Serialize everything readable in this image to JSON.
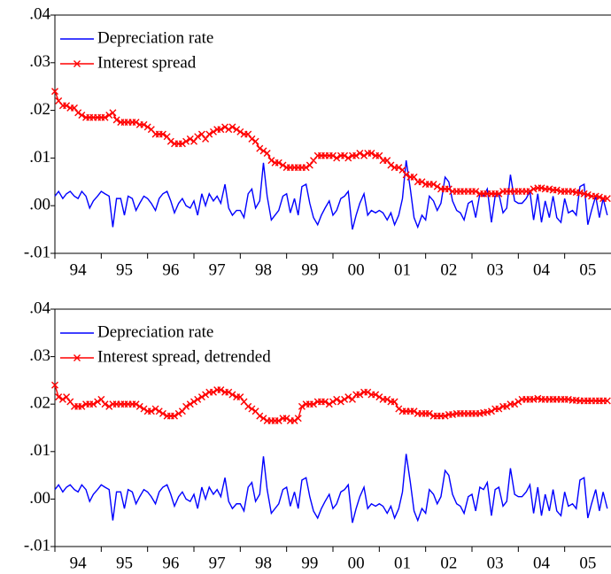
{
  "chart_data": [
    {
      "type": "line",
      "x": [
        1994.0,
        1994.08,
        1994.17,
        1994.25,
        1994.33,
        1994.42,
        1994.5,
        1994.58,
        1994.67,
        1994.75,
        1994.83,
        1994.92,
        1995.0,
        1995.08,
        1995.17,
        1995.25,
        1995.33,
        1995.42,
        1995.5,
        1995.58,
        1995.67,
        1995.75,
        1995.83,
        1995.92,
        1996.0,
        1996.08,
        1996.17,
        1996.25,
        1996.33,
        1996.42,
        1996.5,
        1996.58,
        1996.67,
        1996.75,
        1996.83,
        1996.92,
        1997.0,
        1997.08,
        1997.17,
        1997.25,
        1997.33,
        1997.42,
        1997.5,
        1997.58,
        1997.67,
        1997.75,
        1997.83,
        1997.92,
        1998.0,
        1998.08,
        1998.17,
        1998.25,
        1998.33,
        1998.42,
        1998.5,
        1998.58,
        1998.67,
        1998.75,
        1998.83,
        1998.92,
        1999.0,
        1999.08,
        1999.17,
        1999.25,
        1999.33,
        1999.42,
        1999.5,
        1999.58,
        1999.67,
        1999.75,
        1999.83,
        1999.92,
        2000.0,
        2000.08,
        2000.17,
        2000.25,
        2000.33,
        2000.42,
        2000.5,
        2000.58,
        2000.67,
        2000.75,
        2000.83,
        2000.92,
        2001.0,
        2001.08,
        2001.17,
        2001.25,
        2001.33,
        2001.42,
        2001.5,
        2001.58,
        2001.67,
        2001.75,
        2001.83,
        2001.92,
        2002.0,
        2002.08,
        2002.17,
        2002.25,
        2002.33,
        2002.42,
        2002.5,
        2002.58,
        2002.67,
        2002.75,
        2002.83,
        2002.92,
        2003.0,
        2003.08,
        2003.17,
        2003.25,
        2003.33,
        2003.42,
        2003.5,
        2003.58,
        2003.67,
        2003.75,
        2003.83,
        2003.92,
        2004.0,
        2004.08,
        2004.17,
        2004.25,
        2004.33,
        2004.42,
        2004.5,
        2004.58,
        2004.67,
        2004.75,
        2004.83,
        2004.92,
        2005.0,
        2005.08,
        2005.17,
        2005.25,
        2005.33,
        2005.42,
        2005.5,
        2005.58,
        2005.67,
        2005.75,
        2005.83,
        2005.92
      ],
      "series": [
        {
          "name": "Depreciation rate",
          "color": "#0000ff",
          "marker": "none",
          "values": [
            0.002,
            0.003,
            0.0015,
            0.0025,
            0.003,
            0.002,
            0.0015,
            0.003,
            0.002,
            -0.0005,
            0.001,
            0.002,
            0.003,
            0.0025,
            0.002,
            -0.0045,
            0.0015,
            0.0015,
            -0.002,
            0.002,
            0.0015,
            -0.001,
            0.0005,
            0.002,
            0.0015,
            0.0005,
            -0.001,
            0.0015,
            0.0025,
            0.003,
            0.001,
            -0.0015,
            0.0005,
            0.0015,
            0,
            -0.0005,
            0.001,
            -0.002,
            0.0025,
            0,
            0.0025,
            0.001,
            0.002,
            0.0005,
            0.0045,
            -0.0005,
            -0.002,
            -0.001,
            -0.001,
            -0.0025,
            0.0025,
            0.0035,
            -0.0005,
            0.001,
            0.009,
            0.002,
            -0.003,
            -0.002,
            -0.001,
            0.002,
            0.0025,
            -0.0015,
            0.0015,
            -0.002,
            0.004,
            0.0045,
            0.0005,
            -0.0025,
            -0.004,
            -0.002,
            -0.0005,
            0.001,
            -0.002,
            -0.001,
            0.0015,
            0.002,
            0.003,
            -0.005,
            -0.002,
            0.0005,
            0.0025,
            -0.002,
            -0.001,
            -0.0015,
            -0.001,
            -0.0015,
            -0.003,
            -0.0015,
            -0.004,
            -0.002,
            0.0015,
            0.0095,
            0.0035,
            -0.0025,
            -0.0045,
            -0.002,
            -0.003,
            0.002,
            0.001,
            -0.001,
            0.0005,
            0.006,
            0.005,
            0.001,
            -0.001,
            -0.0015,
            -0.003,
            0.0005,
            0.001,
            -0.0025,
            0.0025,
            0.002,
            0.0035,
            -0.0035,
            0.002,
            0.0025,
            -0.0015,
            -0.0005,
            0.0065,
            0.001,
            0.0005,
            0.0005,
            0.0015,
            0.003,
            -0.003,
            0.0025,
            -0.0035,
            0.001,
            -0.0025,
            0.002,
            -0.0025,
            -0.0035,
            0.0015,
            -0.0015,
            -0.001,
            -0.002,
            0.004,
            0.0045,
            -0.004,
            -0.001,
            0.002,
            -0.0025,
            0.0015,
            -0.002
          ]
        },
        {
          "name": "Interest spread",
          "color": "#ff0000",
          "marker": "x",
          "values": [
            0.024,
            0.022,
            0.021,
            0.021,
            0.0205,
            0.0205,
            0.0195,
            0.019,
            0.0185,
            0.0185,
            0.0185,
            0.0185,
            0.0185,
            0.0185,
            0.019,
            0.0195,
            0.018,
            0.0175,
            0.0175,
            0.0175,
            0.0175,
            0.0175,
            0.017,
            0.017,
            0.0165,
            0.016,
            0.015,
            0.015,
            0.015,
            0.0145,
            0.0135,
            0.013,
            0.013,
            0.013,
            0.0135,
            0.014,
            0.0135,
            0.0145,
            0.015,
            0.014,
            0.015,
            0.0155,
            0.016,
            0.016,
            0.0165,
            0.016,
            0.0165,
            0.016,
            0.0155,
            0.015,
            0.015,
            0.014,
            0.0135,
            0.012,
            0.0115,
            0.011,
            0.0095,
            0.009,
            0.009,
            0.0085,
            0.008,
            0.008,
            0.008,
            0.008,
            0.008,
            0.008,
            0.0085,
            0.0095,
            0.0105,
            0.0105,
            0.0105,
            0.0105,
            0.0105,
            0.01,
            0.0105,
            0.0105,
            0.01,
            0.0105,
            0.0105,
            0.011,
            0.0105,
            0.011,
            0.011,
            0.0105,
            0.0105,
            0.0095,
            0.0095,
            0.0085,
            0.008,
            0.008,
            0.0075,
            0.0065,
            0.006,
            0.006,
            0.005,
            0.005,
            0.0045,
            0.0045,
            0.0045,
            0.004,
            0.0035,
            0.0035,
            0.0035,
            0.003,
            0.003,
            0.003,
            0.003,
            0.003,
            0.003,
            0.003,
            0.0025,
            0.0025,
            0.0025,
            0.0025,
            0.0025,
            0.0025,
            0.003,
            0.003,
            0.003,
            0.003,
            0.003,
            0.003,
            0.003,
            0.003,
            0.0035,
            0.0037,
            0.0037,
            0.0035,
            0.0035,
            0.0033,
            0.0033,
            0.003,
            0.003,
            0.003,
            0.003,
            0.0028,
            0.0027,
            0.0025,
            0.0023,
            0.002,
            0.002,
            0.0018,
            0.0015,
            0.0015
          ]
        }
      ],
      "xlim": [
        1994,
        2006
      ],
      "xticks": [
        {
          "value": 1994.5,
          "label": "94"
        },
        {
          "value": 1995.5,
          "label": "95"
        },
        {
          "value": 1996.5,
          "label": "96"
        },
        {
          "value": 1997.5,
          "label": "97"
        },
        {
          "value": 1998.5,
          "label": "98"
        },
        {
          "value": 1999.5,
          "label": "99"
        },
        {
          "value": 2000.5,
          "label": "00"
        },
        {
          "value": 2001.5,
          "label": "01"
        },
        {
          "value": 2002.5,
          "label": "02"
        },
        {
          "value": 2003.5,
          "label": "03"
        },
        {
          "value": 2004.5,
          "label": "04"
        },
        {
          "value": 2005.5,
          "label": "05"
        }
      ],
      "ylim": [
        -0.01,
        0.04
      ],
      "yticks": [
        {
          "value": -0.01,
          "label": "-.01"
        },
        {
          "value": 0,
          "label": ".00"
        },
        {
          "value": 0.01,
          "label": ".01"
        },
        {
          "value": 0.02,
          "label": ".02"
        },
        {
          "value": 0.03,
          "label": ".03"
        },
        {
          "value": 0.04,
          "label": ".04"
        }
      ],
      "legend": "upper left"
    },
    {
      "type": "line",
      "x": [
        1994.0,
        1994.08,
        1994.17,
        1994.25,
        1994.33,
        1994.42,
        1994.5,
        1994.58,
        1994.67,
        1994.75,
        1994.83,
        1994.92,
        1995.0,
        1995.08,
        1995.17,
        1995.25,
        1995.33,
        1995.42,
        1995.5,
        1995.58,
        1995.67,
        1995.75,
        1995.83,
        1995.92,
        1996.0,
        1996.08,
        1996.17,
        1996.25,
        1996.33,
        1996.42,
        1996.5,
        1996.58,
        1996.67,
        1996.75,
        1996.83,
        1996.92,
        1997.0,
        1997.08,
        1997.17,
        1997.25,
        1997.33,
        1997.42,
        1997.5,
        1997.58,
        1997.67,
        1997.75,
        1997.83,
        1997.92,
        1998.0,
        1998.08,
        1998.17,
        1998.25,
        1998.33,
        1998.42,
        1998.5,
        1998.58,
        1998.67,
        1998.75,
        1998.83,
        1998.92,
        1999.0,
        1999.08,
        1999.17,
        1999.25,
        1999.33,
        1999.42,
        1999.5,
        1999.58,
        1999.67,
        1999.75,
        1999.83,
        1999.92,
        2000.0,
        2000.08,
        2000.17,
        2000.25,
        2000.33,
        2000.42,
        2000.5,
        2000.58,
        2000.67,
        2000.75,
        2000.83,
        2000.92,
        2001.0,
        2001.08,
        2001.17,
        2001.25,
        2001.33,
        2001.42,
        2001.5,
        2001.58,
        2001.67,
        2001.75,
        2001.83,
        2001.92,
        2002.0,
        2002.08,
        2002.17,
        2002.25,
        2002.33,
        2002.42,
        2002.5,
        2002.58,
        2002.67,
        2002.75,
        2002.83,
        2002.92,
        2003.0,
        2003.08,
        2003.17,
        2003.25,
        2003.33,
        2003.42,
        2003.5,
        2003.58,
        2003.67,
        2003.75,
        2003.83,
        2003.92,
        2004.0,
        2004.08,
        2004.17,
        2004.25,
        2004.33,
        2004.42,
        2004.5,
        2004.58,
        2004.67,
        2004.75,
        2004.83,
        2004.92,
        2005.0,
        2005.08,
        2005.17,
        2005.25,
        2005.33,
        2005.42,
        2005.5,
        2005.58,
        2005.67,
        2005.75,
        2005.83,
        2005.92
      ],
      "series": [
        {
          "name": "Depreciation rate",
          "color": "#0000ff",
          "marker": "none",
          "values": [
            0.002,
            0.003,
            0.0015,
            0.0025,
            0.003,
            0.002,
            0.0015,
            0.003,
            0.002,
            -0.0005,
            0.001,
            0.002,
            0.003,
            0.0025,
            0.002,
            -0.0045,
            0.0015,
            0.0015,
            -0.002,
            0.002,
            0.0015,
            -0.001,
            0.0005,
            0.002,
            0.0015,
            0.0005,
            -0.001,
            0.0015,
            0.0025,
            0.003,
            0.001,
            -0.0015,
            0.0005,
            0.0015,
            0,
            -0.0005,
            0.001,
            -0.002,
            0.0025,
            0,
            0.0025,
            0.001,
            0.002,
            0.0005,
            0.0045,
            -0.0005,
            -0.002,
            -0.001,
            -0.001,
            -0.0025,
            0.0025,
            0.0035,
            -0.0005,
            0.001,
            0.009,
            0.002,
            -0.003,
            -0.002,
            -0.001,
            0.002,
            0.0025,
            -0.0015,
            0.0015,
            -0.002,
            0.004,
            0.0045,
            0.0005,
            -0.0025,
            -0.004,
            -0.002,
            -0.0005,
            0.001,
            -0.002,
            -0.001,
            0.0015,
            0.002,
            0.003,
            -0.005,
            -0.002,
            0.0005,
            0.0025,
            -0.002,
            -0.001,
            -0.0015,
            -0.001,
            -0.0015,
            -0.003,
            -0.0015,
            -0.004,
            -0.002,
            0.0015,
            0.0095,
            0.0035,
            -0.0025,
            -0.0045,
            -0.002,
            -0.003,
            0.002,
            0.001,
            -0.001,
            0.0005,
            0.006,
            0.005,
            0.001,
            -0.001,
            -0.0015,
            -0.003,
            0.0005,
            0.001,
            -0.0025,
            0.0025,
            0.002,
            0.0035,
            -0.0035,
            0.002,
            0.0025,
            -0.0015,
            -0.0005,
            0.0065,
            0.001,
            0.0005,
            0.0005,
            0.0015,
            0.003,
            -0.003,
            0.0025,
            -0.0035,
            0.001,
            -0.0025,
            0.002,
            -0.0025,
            -0.0035,
            0.0015,
            -0.0015,
            -0.001,
            -0.002,
            0.004,
            0.0045,
            -0.004,
            -0.001,
            0.002,
            -0.0025,
            0.0015,
            -0.002
          ]
        },
        {
          "name": "Interest spread, detrended",
          "color": "#ff0000",
          "marker": "x",
          "values": [
            0.024,
            0.0215,
            0.021,
            0.0215,
            0.0205,
            0.0195,
            0.0195,
            0.0195,
            0.02,
            0.02,
            0.02,
            0.0205,
            0.021,
            0.02,
            0.0195,
            0.02,
            0.02,
            0.02,
            0.02,
            0.02,
            0.02,
            0.02,
            0.0195,
            0.019,
            0.0185,
            0.0185,
            0.019,
            0.0185,
            0.018,
            0.0175,
            0.0175,
            0.0175,
            0.018,
            0.0185,
            0.0195,
            0.02,
            0.0205,
            0.021,
            0.0215,
            0.022,
            0.0225,
            0.0225,
            0.023,
            0.023,
            0.0225,
            0.0225,
            0.022,
            0.0215,
            0.0215,
            0.0205,
            0.0195,
            0.019,
            0.0185,
            0.0175,
            0.017,
            0.0165,
            0.0165,
            0.0165,
            0.0165,
            0.017,
            0.017,
            0.0165,
            0.0165,
            0.017,
            0.0195,
            0.02,
            0.02,
            0.02,
            0.0205,
            0.0205,
            0.0205,
            0.02,
            0.0205,
            0.021,
            0.0205,
            0.021,
            0.0215,
            0.021,
            0.022,
            0.022,
            0.0225,
            0.0225,
            0.022,
            0.022,
            0.0215,
            0.021,
            0.021,
            0.0205,
            0.0205,
            0.019,
            0.0185,
            0.0185,
            0.0185,
            0.0185,
            0.018,
            0.018,
            0.018,
            0.018,
            0.0175,
            0.0175,
            0.0175,
            0.0175,
            0.0178,
            0.0178,
            0.018,
            0.018,
            0.018,
            0.018,
            0.018,
            0.018,
            0.018,
            0.0182,
            0.0183,
            0.0185,
            0.019,
            0.019,
            0.0195,
            0.0195,
            0.02,
            0.02,
            0.0205,
            0.021,
            0.021,
            0.021,
            0.021,
            0.0212,
            0.021,
            0.021,
            0.021,
            0.021,
            0.021,
            0.021,
            0.021,
            0.021,
            0.0208,
            0.0208,
            0.0207,
            0.0207,
            0.0207,
            0.0207,
            0.0207,
            0.0207,
            0.0207,
            0.0207
          ]
        }
      ],
      "xlim": [
        1994,
        2006
      ],
      "xticks": [
        {
          "value": 1994.5,
          "label": "94"
        },
        {
          "value": 1995.5,
          "label": "95"
        },
        {
          "value": 1996.5,
          "label": "96"
        },
        {
          "value": 1997.5,
          "label": "97"
        },
        {
          "value": 1998.5,
          "label": "98"
        },
        {
          "value": 1999.5,
          "label": "99"
        },
        {
          "value": 2000.5,
          "label": "00"
        },
        {
          "value": 2001.5,
          "label": "01"
        },
        {
          "value": 2002.5,
          "label": "02"
        },
        {
          "value": 2003.5,
          "label": "03"
        },
        {
          "value": 2004.5,
          "label": "04"
        },
        {
          "value": 2005.5,
          "label": "05"
        }
      ],
      "ylim": [
        -0.01,
        0.04
      ],
      "yticks": [
        {
          "value": -0.01,
          "label": "-.01"
        },
        {
          "value": 0,
          "label": ".00"
        },
        {
          "value": 0.01,
          "label": ".01"
        },
        {
          "value": 0.02,
          "label": ".02"
        },
        {
          "value": 0.03,
          "label": ".03"
        },
        {
          "value": 0.04,
          "label": ".04"
        }
      ],
      "legend": "upper left"
    }
  ]
}
